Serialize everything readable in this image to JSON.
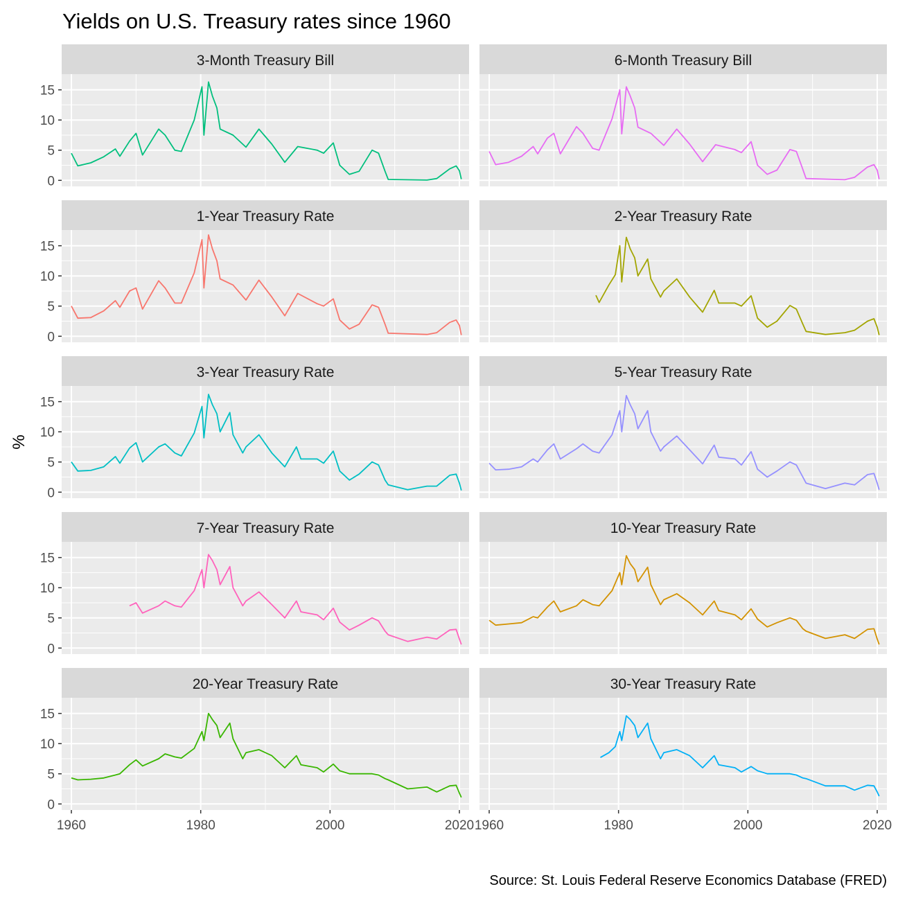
{
  "chart_data": {
    "type": "line",
    "title": "Yields on U.S. Treasury rates since 1960",
    "ylabel": "%",
    "xlabel": "",
    "caption": "Source: St. Louis Federal Reserve Economics Database (FRED)",
    "xlim": [
      1958.5,
      2021.5
    ],
    "ylim": [
      -1,
      17.6
    ],
    "x_ticks": [
      1960,
      1980,
      2000,
      2020
    ],
    "y_ticks": [
      0,
      5,
      10,
      15
    ],
    "grid": true,
    "legend": "none",
    "layout": "facet_wrap, 2 columns, 5 rows",
    "series": [
      {
        "name": "3-Month Treasury Bill",
        "color": "#00BF7D",
        "x": [
          1960,
          1961,
          1963,
          1965,
          1966.8,
          1967.5,
          1969,
          1970,
          1971,
          1973.5,
          1974.5,
          1976,
          1977,
          1979,
          1980.2,
          1980.5,
          1981.2,
          1981.8,
          1982.5,
          1983,
          1985,
          1987,
          1989,
          1991,
          1993,
          1995,
          1998,
          1999,
          2000.5,
          2001.5,
          2003,
          2004.5,
          2006.5,
          2007.5,
          2008.5,
          2009,
          2015,
          2016.5,
          2018.5,
          2019.5,
          2020,
          2020.3
        ],
        "y": [
          4.5,
          2.4,
          2.9,
          3.9,
          5.2,
          4.0,
          6.5,
          7.8,
          4.2,
          8.5,
          7.5,
          5.0,
          4.8,
          10.0,
          15.5,
          7.5,
          16.3,
          14.0,
          12.0,
          8.5,
          7.5,
          5.5,
          8.5,
          6.0,
          3.0,
          5.6,
          5.0,
          4.5,
          6.2,
          2.5,
          1.0,
          1.5,
          5.0,
          4.5,
          1.5,
          0.15,
          0.05,
          0.3,
          1.9,
          2.4,
          1.6,
          0.2
        ]
      },
      {
        "name": "6-Month Treasury Bill",
        "color": "#E76BF3",
        "x": [
          1960,
          1961,
          1963,
          1965,
          1966.8,
          1967.5,
          1969,
          1970,
          1971,
          1973.5,
          1974.5,
          1976,
          1977,
          1979,
          1980.2,
          1980.5,
          1981.2,
          1981.8,
          1982.5,
          1983,
          1985,
          1987,
          1989,
          1991,
          1993,
          1995,
          1998,
          1999,
          2000.5,
          2001.5,
          2003,
          2004.5,
          2006.5,
          2007.5,
          2008.5,
          2009,
          2015,
          2016.5,
          2018.5,
          2019.5,
          2020,
          2020.3
        ],
        "y": [
          4.8,
          2.6,
          3.0,
          4.0,
          5.6,
          4.4,
          7.0,
          7.8,
          4.4,
          8.9,
          7.8,
          5.3,
          5.0,
          10.2,
          15.0,
          7.7,
          15.5,
          14.0,
          12.0,
          8.8,
          7.8,
          5.8,
          8.5,
          6.0,
          3.1,
          5.9,
          5.1,
          4.6,
          6.4,
          2.5,
          1.0,
          1.7,
          5.1,
          4.8,
          1.8,
          0.3,
          0.1,
          0.5,
          2.2,
          2.6,
          1.7,
          0.2
        ]
      },
      {
        "name": "1-Year Treasury Rate",
        "color": "#F8766D",
        "x": [
          1960,
          1961,
          1963,
          1965,
          1966.8,
          1967.5,
          1969,
          1970,
          1971,
          1973.5,
          1974.5,
          1976,
          1977,
          1979,
          1980.2,
          1980.5,
          1981.2,
          1981.8,
          1982.5,
          1983,
          1985,
          1987,
          1989,
          1991,
          1993,
          1995,
          1998,
          1999,
          2000.5,
          2001.5,
          2003,
          2004.5,
          2006.5,
          2007.5,
          2008.5,
          2009,
          2015,
          2016.5,
          2018.5,
          2019.5,
          2020,
          2020.3
        ],
        "y": [
          5.0,
          3.0,
          3.1,
          4.2,
          5.9,
          4.8,
          7.5,
          8.0,
          4.5,
          9.2,
          8.0,
          5.5,
          5.5,
          10.5,
          16.0,
          8.0,
          16.8,
          14.5,
          12.5,
          9.5,
          8.5,
          6.0,
          9.3,
          6.5,
          3.4,
          7.1,
          5.4,
          5.0,
          6.2,
          2.7,
          1.2,
          2.0,
          5.2,
          4.8,
          2.0,
          0.5,
          0.3,
          0.6,
          2.3,
          2.7,
          1.8,
          0.2
        ]
      },
      {
        "name": "2-Year Treasury Rate",
        "color": "#A3A500",
        "x": [
          1976.5,
          1977,
          1978.5,
          1979.5,
          1980.2,
          1980.5,
          1981.2,
          1981.8,
          1982.5,
          1983,
          1984.5,
          1985,
          1986.5,
          1987,
          1989,
          1991,
          1993,
          1994.8,
          1995.5,
          1998,
          1999,
          2000.5,
          2001.5,
          2003,
          2004.5,
          2006.5,
          2007.5,
          2008.5,
          2009,
          2012,
          2015,
          2016.5,
          2018.5,
          2019.5,
          2020,
          2020.3
        ],
        "y": [
          6.8,
          5.6,
          8.5,
          10.2,
          15.0,
          9.0,
          16.4,
          14.5,
          13.0,
          10.0,
          12.8,
          9.5,
          6.5,
          7.5,
          9.5,
          6.5,
          4.0,
          7.6,
          5.5,
          5.5,
          5.0,
          6.7,
          3.0,
          1.5,
          2.5,
          5.1,
          4.5,
          2.0,
          0.8,
          0.3,
          0.6,
          1.0,
          2.5,
          2.9,
          1.5,
          0.2
        ]
      },
      {
        "name": "3-Year Treasury Rate",
        "color": "#00BFC4",
        "x": [
          1960,
          1961,
          1963,
          1965,
          1966.8,
          1967.5,
          1969,
          1970,
          1971,
          1973.5,
          1974.5,
          1976,
          1977,
          1979,
          1980.2,
          1980.5,
          1981.2,
          1981.8,
          1982.5,
          1983,
          1984.5,
          1985,
          1986.5,
          1987,
          1989,
          1991,
          1993,
          1994.8,
          1995.5,
          1998,
          1999,
          2000.5,
          2001.5,
          2003,
          2004.5,
          2006.5,
          2007.5,
          2008.5,
          2009,
          2012,
          2015,
          2016.5,
          2018.5,
          2019.5,
          2020,
          2020.3
        ],
        "y": [
          5.0,
          3.5,
          3.6,
          4.2,
          5.9,
          4.8,
          7.3,
          8.2,
          5.0,
          7.5,
          8.0,
          6.5,
          6.0,
          9.8,
          14.2,
          9.0,
          16.2,
          14.5,
          13.0,
          10.0,
          13.2,
          9.5,
          6.5,
          7.5,
          9.5,
          6.5,
          4.2,
          7.5,
          5.5,
          5.5,
          4.8,
          6.8,
          3.5,
          2.0,
          3.0,
          5.0,
          4.5,
          2.0,
          1.2,
          0.4,
          1.0,
          1.0,
          2.8,
          3.0,
          1.5,
          0.3
        ]
      },
      {
        "name": "5-Year Treasury Rate",
        "color": "#9590FF",
        "x": [
          1960,
          1961,
          1963,
          1965,
          1966.8,
          1967.5,
          1969,
          1970,
          1971,
          1973.5,
          1974.5,
          1976,
          1977,
          1979,
          1980.2,
          1980.5,
          1981.2,
          1981.8,
          1982.5,
          1983,
          1984.5,
          1985,
          1986.5,
          1987,
          1989,
          1991,
          1993,
          1994.8,
          1995.5,
          1998,
          1999,
          2000.5,
          2001.5,
          2003,
          2004.5,
          2006.5,
          2007.5,
          2008.5,
          2009,
          2012,
          2015,
          2016.5,
          2018.5,
          2019.5,
          2020,
          2020.3
        ],
        "y": [
          4.8,
          3.7,
          3.8,
          4.2,
          5.5,
          5.0,
          7.0,
          8.0,
          5.5,
          7.2,
          8.0,
          6.8,
          6.5,
          9.5,
          13.5,
          10.0,
          16.0,
          14.5,
          13.0,
          10.5,
          13.5,
          10.0,
          6.8,
          7.5,
          9.3,
          7.0,
          4.7,
          7.8,
          5.8,
          5.5,
          4.5,
          6.7,
          3.8,
          2.5,
          3.5,
          5.0,
          4.5,
          2.5,
          1.5,
          0.6,
          1.5,
          1.2,
          2.9,
          3.1,
          1.5,
          0.4
        ]
      },
      {
        "name": "7-Year Treasury Rate",
        "color": "#FF62BC",
        "x": [
          1969,
          1970,
          1971,
          1973.5,
          1974.5,
          1976,
          1977,
          1979,
          1980.2,
          1980.5,
          1981.2,
          1981.8,
          1982.5,
          1983,
          1984.5,
          1985,
          1986.5,
          1987,
          1989,
          1991,
          1993,
          1994.8,
          1995.5,
          1998,
          1999,
          2000.5,
          2001.5,
          2003,
          2004.5,
          2006.5,
          2007.5,
          2008.5,
          2009,
          2012,
          2015,
          2016.5,
          2018.5,
          2019.5,
          2020,
          2020.3
        ],
        "y": [
          7.0,
          7.5,
          5.8,
          7.0,
          7.8,
          7.0,
          6.8,
          9.5,
          13.0,
          10.0,
          15.5,
          14.5,
          13.0,
          10.5,
          13.5,
          10.0,
          7.0,
          7.8,
          9.3,
          7.2,
          5.0,
          7.8,
          6.0,
          5.5,
          4.7,
          6.6,
          4.3,
          3.0,
          3.8,
          5.0,
          4.5,
          2.8,
          2.2,
          1.1,
          1.8,
          1.5,
          3.0,
          3.1,
          1.5,
          0.6
        ]
      },
      {
        "name": "10-Year Treasury Rate",
        "color": "#D39200",
        "x": [
          1960,
          1961,
          1963,
          1965,
          1966.8,
          1967.5,
          1969,
          1970,
          1971,
          1973.5,
          1974.5,
          1976,
          1977,
          1979,
          1980.2,
          1980.5,
          1981.2,
          1981.8,
          1982.5,
          1983,
          1984.5,
          1985,
          1986.5,
          1987,
          1989,
          1991,
          1993,
          1994.8,
          1995.5,
          1998,
          1999,
          2000.5,
          2001.5,
          2003,
          2004.5,
          2006.5,
          2007.5,
          2008.5,
          2009,
          2012,
          2015,
          2016.5,
          2018.5,
          2019.5,
          2020,
          2020.3
        ],
        "y": [
          4.6,
          3.8,
          4.0,
          4.2,
          5.2,
          5.0,
          6.8,
          7.8,
          6.0,
          7.0,
          8.0,
          7.2,
          7.0,
          9.5,
          12.5,
          10.5,
          15.3,
          14.0,
          13.0,
          11.0,
          13.4,
          10.5,
          7.2,
          8.0,
          9.0,
          7.5,
          5.5,
          7.8,
          6.2,
          5.5,
          4.7,
          6.5,
          4.8,
          3.5,
          4.2,
          5.0,
          4.6,
          3.2,
          2.8,
          1.6,
          2.2,
          1.6,
          3.1,
          3.2,
          1.5,
          0.6
        ]
      },
      {
        "name": "20-Year Treasury Rate",
        "color": "#39B600",
        "x": [
          1960,
          1961,
          1963,
          1965,
          1966.8,
          1967.5,
          1969,
          1970,
          1971,
          1973.5,
          1974.5,
          1976,
          1977,
          1979,
          1980.2,
          1980.5,
          1981.2,
          1981.8,
          1982.5,
          1983,
          1984.5,
          1985,
          1986.5,
          1987,
          1989,
          1991,
          1993,
          1994.8,
          1995.5,
          1998,
          1999,
          2000.5,
          2001.5,
          2003,
          2004.5,
          2006.5,
          2007.5,
          2008.5,
          2009,
          2012,
          2015,
          2016.5,
          2018.5,
          2019.5,
          2020,
          2020.3
        ],
        "y": [
          4.3,
          4.0,
          4.1,
          4.3,
          4.8,
          5.0,
          6.5,
          7.3,
          6.3,
          7.5,
          8.3,
          7.8,
          7.6,
          9.2,
          12.0,
          10.5,
          15.0,
          14.0,
          13.0,
          11.0,
          13.4,
          10.8,
          7.5,
          8.5,
          9.0,
          8.0,
          6.0,
          8.0,
          6.5,
          6.0,
          5.3,
          6.6,
          5.5,
          5.0,
          5.0,
          5.0,
          4.8,
          4.2,
          4.0,
          2.5,
          2.8,
          2.0,
          3.0,
          3.1,
          1.8,
          1.1
        ]
      },
      {
        "name": "30-Year Treasury Rate",
        "color": "#00B0F6",
        "x": [
          1977.2,
          1978.5,
          1979.5,
          1980.2,
          1980.5,
          1981.2,
          1981.8,
          1982.5,
          1983,
          1984.5,
          1985,
          1986.5,
          1987,
          1989,
          1991,
          1993,
          1994.8,
          1995.5,
          1998,
          1999,
          2000.5,
          2001.5,
          2003,
          2004.5,
          2006.5,
          2007.5,
          2008.5,
          2009,
          2012,
          2015,
          2016.5,
          2018.5,
          2019.5,
          2020,
          2020.3
        ],
        "y": [
          7.7,
          8.5,
          9.5,
          12.0,
          10.5,
          14.6,
          14.0,
          13.0,
          11.0,
          13.4,
          10.8,
          7.5,
          8.5,
          9.0,
          8.0,
          6.0,
          8.0,
          6.5,
          6.0,
          5.3,
          6.2,
          5.5,
          5.0,
          5.0,
          5.0,
          4.8,
          4.3,
          4.2,
          3.0,
          3.0,
          2.3,
          3.1,
          3.0,
          2.0,
          1.3
        ]
      }
    ]
  }
}
